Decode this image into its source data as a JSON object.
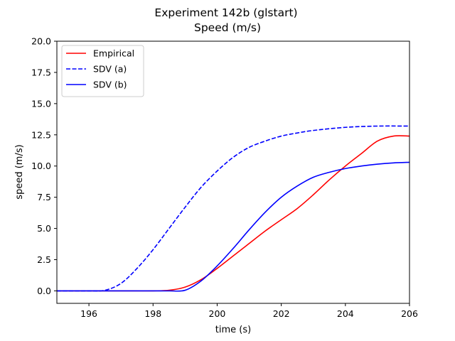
{
  "chart_data": {
    "type": "line",
    "title": "Experiment 142b (glstart)",
    "subtitle": "Speed (m/s)",
    "xlabel": "time (s)",
    "ylabel": "speed (m/s)",
    "xlim": [
      195,
      206
    ],
    "ylim": [
      -1,
      20
    ],
    "xticks": [
      196,
      198,
      200,
      202,
      204,
      206
    ],
    "yticks": [
      0.0,
      2.5,
      5.0,
      7.5,
      10.0,
      12.5,
      15.0,
      17.5,
      20.0
    ],
    "xtick_labels": [
      "196",
      "198",
      "200",
      "202",
      "204",
      "206"
    ],
    "ytick_labels": [
      "0.0",
      "2.5",
      "5.0",
      "7.5",
      "10.0",
      "12.5",
      "15.0",
      "17.5",
      "20.0"
    ],
    "grid": false,
    "legend_position": "top-left",
    "series": [
      {
        "name": "Empirical",
        "color": "#ff0000",
        "style": "solid",
        "x": [
          195,
          196,
          197,
          198,
          198.5,
          199,
          199.5,
          200,
          200.5,
          201,
          201.5,
          202,
          202.5,
          203,
          203.5,
          204,
          204.5,
          205,
          205.5,
          206
        ],
        "y": [
          0,
          0,
          0,
          0,
          0.05,
          0.3,
          0.9,
          1.8,
          2.8,
          3.8,
          4.8,
          5.7,
          6.6,
          7.7,
          8.9,
          10.0,
          11.0,
          12.0,
          12.4,
          12.4
        ]
      },
      {
        "name": "SDV (a)",
        "color": "#0000ff",
        "style": "dashed",
        "x": [
          195,
          196,
          196.5,
          197,
          197.5,
          198,
          198.5,
          199,
          199.5,
          200,
          200.5,
          201,
          201.5,
          202,
          202.5,
          203,
          204,
          205,
          206
        ],
        "y": [
          0,
          0,
          0.05,
          0.6,
          1.8,
          3.3,
          5.0,
          6.7,
          8.3,
          9.6,
          10.7,
          11.5,
          12.0,
          12.4,
          12.65,
          12.85,
          13.1,
          13.2,
          13.2
        ]
      },
      {
        "name": "SDV (b)",
        "color": "#0000ff",
        "style": "solid",
        "x": [
          195,
          196,
          197,
          198,
          198.5,
          199,
          199.5,
          200,
          200.5,
          201,
          201.5,
          202,
          202.5,
          203,
          203.5,
          204,
          204.5,
          205,
          205.5,
          206
        ],
        "y": [
          0,
          0,
          0,
          0,
          0,
          0.05,
          0.8,
          2.0,
          3.4,
          4.9,
          6.3,
          7.5,
          8.4,
          9.1,
          9.5,
          9.8,
          10.0,
          10.15,
          10.25,
          10.3
        ]
      }
    ]
  }
}
